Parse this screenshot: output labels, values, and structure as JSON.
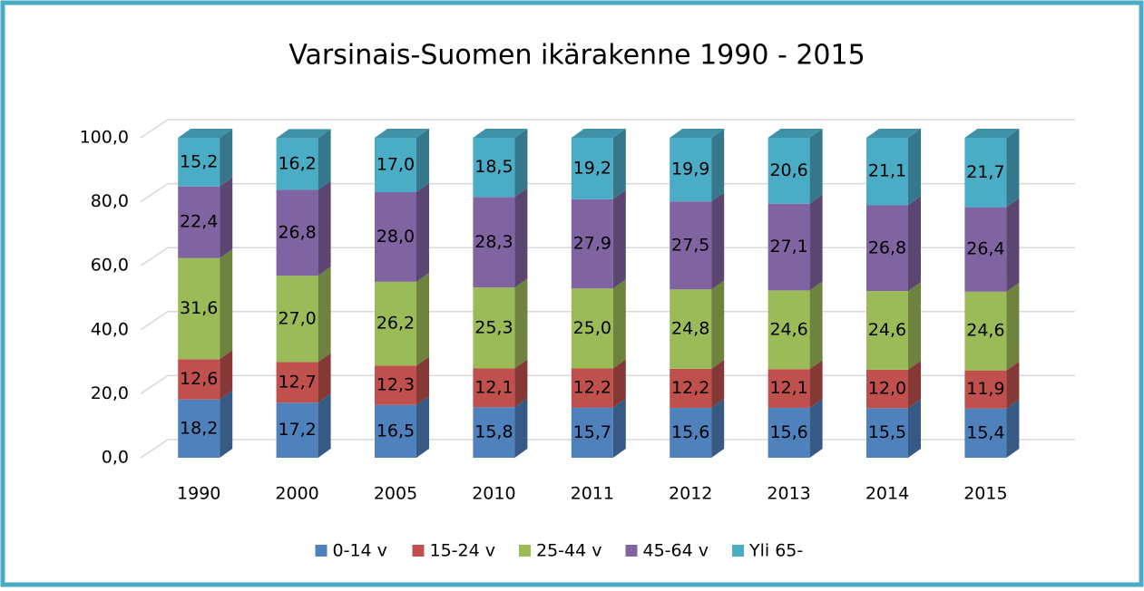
{
  "chart_data": {
    "type": "bar3d_stacked",
    "title": "Varsinais-Suomen ikärakenne 1990 - 2015",
    "categories": [
      "1990",
      "2000",
      "2005",
      "2010",
      "2011",
      "2012",
      "2013",
      "2014",
      "2015"
    ],
    "series": [
      {
        "name": "0-14 v",
        "color": "#4f81bd",
        "values": [
          18.2,
          17.2,
          16.5,
          15.8,
          15.7,
          15.6,
          15.6,
          15.5,
          15.4
        ],
        "value_labels": [
          "18,2",
          "17,2",
          "16,5",
          "15,8",
          "15,7",
          "15,6",
          "15,6",
          "15,5",
          "15,4"
        ]
      },
      {
        "name": "15-24 v",
        "color": "#c0504d",
        "values": [
          12.6,
          12.7,
          12.3,
          12.1,
          12.2,
          12.2,
          12.1,
          12.0,
          11.9
        ],
        "value_labels": [
          "12,6",
          "12,7",
          "12,3",
          "12,1",
          "12,2",
          "12,2",
          "12,1",
          "12,0",
          "11,9"
        ]
      },
      {
        "name": "25-44 v",
        "color": "#9bbb59",
        "values": [
          31.6,
          27.0,
          26.2,
          25.3,
          25.0,
          24.8,
          24.6,
          24.6,
          24.6
        ],
        "value_labels": [
          "31,6",
          "27,0",
          "26,2",
          "25,3",
          "25,0",
          "24,8",
          "24,6",
          "24,6",
          "24,6"
        ]
      },
      {
        "name": "45-64 v",
        "color": "#8064a2",
        "values": [
          22.4,
          26.8,
          28.0,
          28.3,
          27.9,
          27.5,
          27.1,
          26.8,
          26.4
        ],
        "value_labels": [
          "22,4",
          "26,8",
          "28,0",
          "28,3",
          "27,9",
          "27,5",
          "27,1",
          "26,8",
          "26,4"
        ]
      },
      {
        "name": "Yli 65-",
        "color": "#4bacc6",
        "values": [
          15.2,
          16.2,
          17.0,
          18.5,
          19.2,
          19.9,
          20.6,
          21.1,
          21.7
        ],
        "value_labels": [
          "15,2",
          "16,2",
          "17,0",
          "18,5",
          "19,2",
          "19,9",
          "20,6",
          "21,1",
          "21,7"
        ]
      }
    ],
    "ylim": [
      0,
      100
    ],
    "yticks": [
      {
        "value": 0,
        "label": "0,0"
      },
      {
        "value": 20,
        "label": "20,0"
      },
      {
        "value": 40,
        "label": "40,0"
      },
      {
        "value": 60,
        "label": "60,0"
      },
      {
        "value": 80,
        "label": "80,0"
      },
      {
        "value": 100,
        "label": "100,0"
      }
    ],
    "grid": true,
    "legend": "bottom"
  }
}
